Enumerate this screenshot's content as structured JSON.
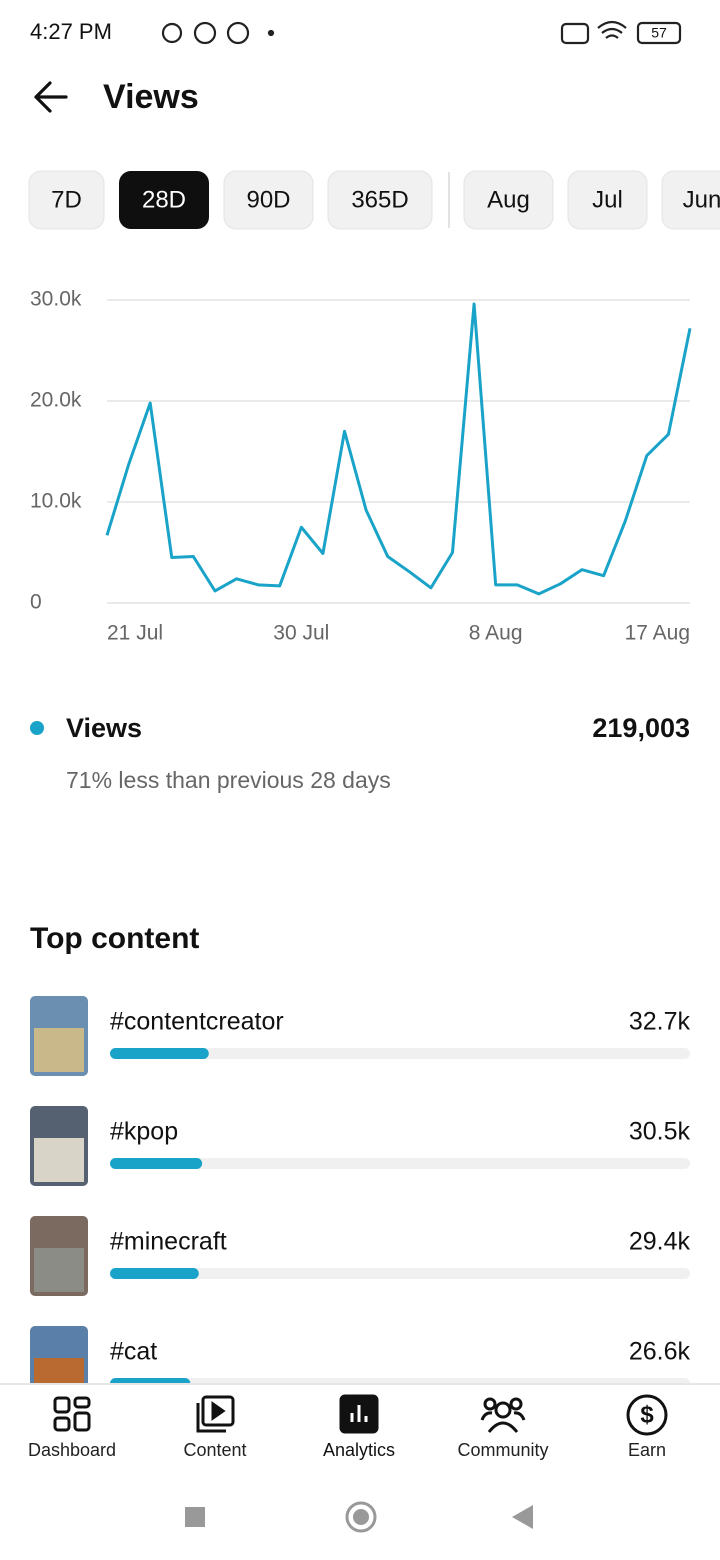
{
  "status_bar": {
    "time": "4:27 PM",
    "battery": "57"
  },
  "header": {
    "title": "Views"
  },
  "tabs": [
    "7D",
    "28D",
    "90D",
    "365D",
    "Aug",
    "Jul",
    "Jun"
  ],
  "selected_tab": 1,
  "chart_data": {
    "type": "line",
    "categories": [
      "21 Jul",
      null,
      null,
      null,
      null,
      null,
      null,
      null,
      null,
      "30 Jul",
      null,
      null,
      null,
      null,
      null,
      null,
      null,
      null,
      "8 Aug",
      null,
      null,
      null,
      null,
      null,
      null,
      null,
      null,
      "17 Aug"
    ],
    "values": [
      6700,
      13700,
      19800,
      4500,
      4600,
      1200,
      2400,
      1800,
      1700,
      7500,
      4900,
      17000,
      9200,
      4600,
      3100,
      1500,
      5000,
      29600,
      1800,
      1800,
      900,
      1900,
      3300,
      2700,
      8100,
      14600,
      16700,
      27200
    ],
    "color": "#1aa3c8",
    "ylim": [
      0,
      30000
    ],
    "yticks": [
      0,
      {
        "value": 10000,
        "label": "10.0k"
      },
      {
        "value": 20000,
        "label": "20.0k"
      },
      {
        "value": 30000,
        "label": "30.0k"
      }
    ],
    "grid": true
  },
  "summary": {
    "legend": "Views",
    "total": "219,003",
    "comparison": "71% less than previous 28 days"
  },
  "top_content": {
    "title": "Top content",
    "categories": [
      "#contentcreator",
      "#kpop",
      "#minecraft",
      "#cat"
    ],
    "values": [
      32700,
      30500,
      29400,
      26600
    ],
    "value_labels": [
      "32.7k",
      "30.5k",
      "29.4k",
      "26.6k"
    ],
    "xlim": [
      0,
      192000
    ],
    "color": "#1aa3c8"
  },
  "nav": [
    "Dashboard",
    "Content",
    "Analytics",
    "Community",
    "Earn"
  ],
  "active_nav": 2
}
